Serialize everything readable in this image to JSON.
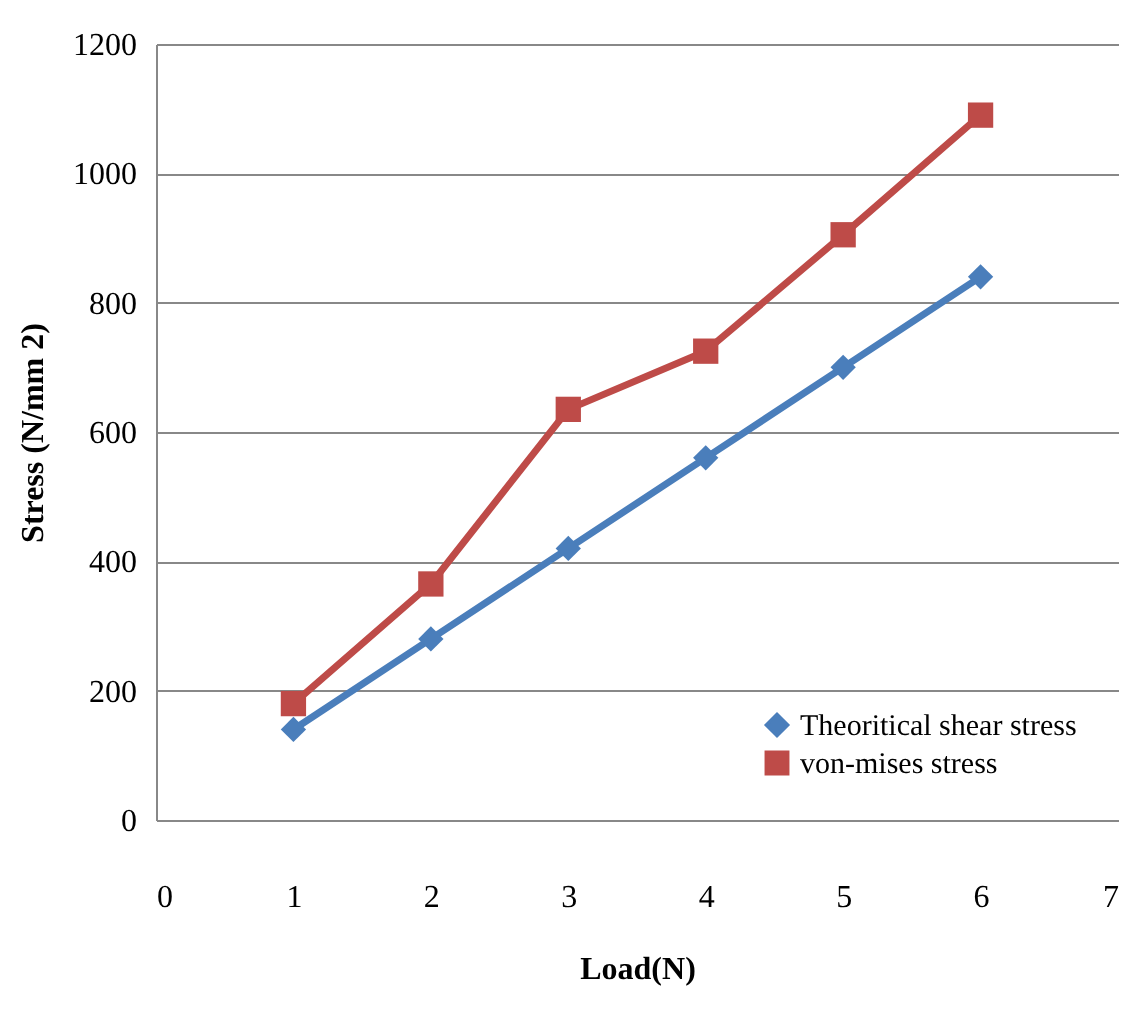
{
  "chart_data": {
    "type": "line",
    "xlabel": "Load(N)",
    "ylabel": "Stress (N/mm 2)",
    "x": [
      1,
      2,
      3,
      4,
      5,
      6
    ],
    "series": [
      {
        "name": "Theoritical shear stress",
        "color": "#4a7ebb",
        "marker": "diamond",
        "values": [
          140,
          280,
          420,
          560,
          700,
          840
        ]
      },
      {
        "name": "von-mises stress",
        "color": "#be4b48",
        "marker": "square",
        "values": [
          180,
          365,
          635,
          725,
          905,
          1090
        ]
      }
    ],
    "xlim": [
      0,
      7
    ],
    "xticks": [
      0,
      1,
      2,
      3,
      4,
      5,
      6,
      7
    ],
    "ylim": [
      0,
      1200
    ],
    "yticks": [
      0,
      200,
      400,
      600,
      800,
      1000,
      1200
    ],
    "grid": "y",
    "legend": "bottom right",
    "line_style": "solid"
  }
}
